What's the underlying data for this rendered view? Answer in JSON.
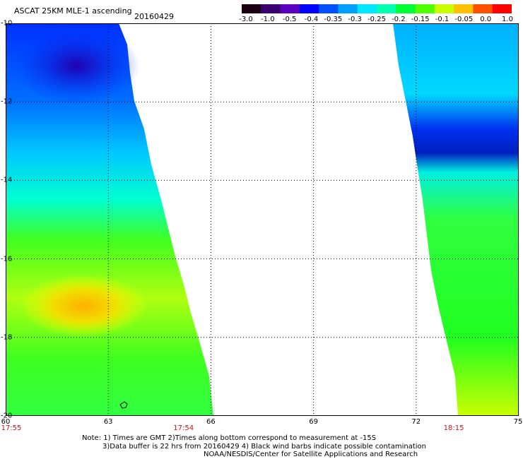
{
  "title": "ASCAT 25KM MLE-1 ascending",
  "date": "20160429",
  "colorbar": {
    "ticks": [
      "-3.0",
      "-1.0",
      "-0.5",
      "-0.4",
      "-0.35",
      "-0.3",
      "-0.25",
      "-0.2",
      "-0.15",
      "-0.1",
      "-0.05",
      "0.0",
      "1.0"
    ],
    "colors": [
      "#1a0010",
      "#3a0070",
      "#5a00c0",
      "#0000ff",
      "#0050ff",
      "#00a0ff",
      "#00e8ff",
      "#00ffb0",
      "#00ff30",
      "#50ff00",
      "#c8ff00",
      "#ffc000",
      "#ff5000",
      "#ff0000"
    ]
  },
  "map": {
    "lat_ticks": [
      "-10",
      "-12",
      "-14",
      "-16",
      "-18",
      "-20"
    ],
    "lon_ticks": [
      "60",
      "63",
      "66",
      "69",
      "72",
      "75"
    ],
    "lat_range": [
      -20,
      -10
    ],
    "lon_range": [
      60,
      75
    ],
    "grid": true,
    "swath_times": [
      {
        "label": "17:55",
        "lon": 60
      },
      {
        "label": "17:54",
        "lon": 65.2
      },
      {
        "label": "18:15",
        "lon": 73.1
      }
    ]
  },
  "notes": [
    "Note: 1) Times are GMT 2)Times along bottom correspond to measurement at -15S",
    "3)Data buffer is 22 hrs from 20160429 4) Black wind barbs indicate possible contamination",
    "NOAA/NESDIS/Center for Satellite Applications and Research"
  ]
}
